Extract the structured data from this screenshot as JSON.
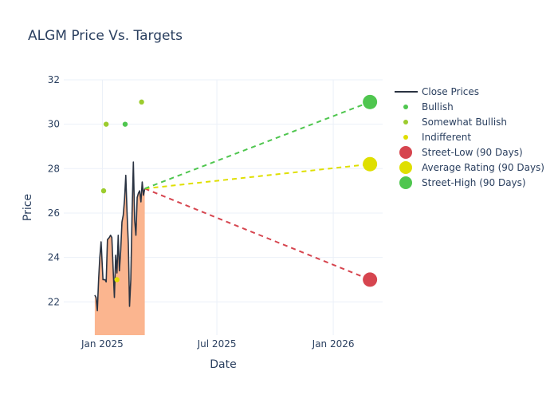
{
  "chart_data": {
    "type": "line",
    "title": "ALGM Price Vs. Targets",
    "xlabel": "Date",
    "ylabel": "Price",
    "ylim": [
      20.5,
      32
    ],
    "xlim": [
      "2024-11-01",
      "2026-03-20"
    ],
    "y_ticks": [
      22,
      24,
      26,
      28,
      30,
      32
    ],
    "x_ticks": [
      {
        "date": "2025-01-01",
        "label": "Jan 2025"
      },
      {
        "date": "2025-07-01",
        "label": "Jul 2025"
      },
      {
        "date": "2026-01-01",
        "label": "Jan 2026"
      }
    ],
    "grid": true,
    "legend_position": "right",
    "colors": {
      "close": "#2a3342",
      "fill": "#fbb58f",
      "bullish": "#4fc64f",
      "somewhat_bullish": "#9ccc2e",
      "indifferent": "#e0de00",
      "street_low": "#d6454f",
      "average": "#dfdf00",
      "street_high": "#4fc64f"
    },
    "close_prices": [
      {
        "x": "2024-12-20",
        "y": 22.3
      },
      {
        "x": "2024-12-22",
        "y": 22.2
      },
      {
        "x": "2024-12-24",
        "y": 21.6
      },
      {
        "x": "2024-12-26",
        "y": 23.0
      },
      {
        "x": "2024-12-28",
        "y": 24.0
      },
      {
        "x": "2024-12-30",
        "y": 24.7
      },
      {
        "x": "2025-01-02",
        "y": 23.0
      },
      {
        "x": "2025-01-05",
        "y": 23.0
      },
      {
        "x": "2025-01-07",
        "y": 22.9
      },
      {
        "x": "2025-01-09",
        "y": 24.8
      },
      {
        "x": "2025-01-12",
        "y": 24.9
      },
      {
        "x": "2025-01-14",
        "y": 25.0
      },
      {
        "x": "2025-01-16",
        "y": 24.9
      },
      {
        "x": "2025-01-18",
        "y": 23.5
      },
      {
        "x": "2025-01-20",
        "y": 22.2
      },
      {
        "x": "2025-01-22",
        "y": 24.1
      },
      {
        "x": "2025-01-24",
        "y": 23.3
      },
      {
        "x": "2025-01-26",
        "y": 25.0
      },
      {
        "x": "2025-01-28",
        "y": 23.4
      },
      {
        "x": "2025-01-30",
        "y": 24.3
      },
      {
        "x": "2025-02-01",
        "y": 25.6
      },
      {
        "x": "2025-02-03",
        "y": 25.9
      },
      {
        "x": "2025-02-05",
        "y": 26.6
      },
      {
        "x": "2025-02-07",
        "y": 27.7
      },
      {
        "x": "2025-02-09",
        "y": 26.0
      },
      {
        "x": "2025-02-11",
        "y": 24.6
      },
      {
        "x": "2025-02-13",
        "y": 21.8
      },
      {
        "x": "2025-02-15",
        "y": 23.0
      },
      {
        "x": "2025-02-17",
        "y": 26.0
      },
      {
        "x": "2025-02-19",
        "y": 28.3
      },
      {
        "x": "2025-02-21",
        "y": 25.7
      },
      {
        "x": "2025-02-23",
        "y": 25.0
      },
      {
        "x": "2025-02-25",
        "y": 26.7
      },
      {
        "x": "2025-02-27",
        "y": 26.9
      },
      {
        "x": "2025-03-01",
        "y": 27.0
      },
      {
        "x": "2025-03-03",
        "y": 26.5
      },
      {
        "x": "2025-03-05",
        "y": 27.4
      },
      {
        "x": "2025-03-07",
        "y": 26.8
      },
      {
        "x": "2025-03-09",
        "y": 27.1
      }
    ],
    "analyst_ratings": [
      {
        "x": "2025-01-03",
        "y": 27.0,
        "rating": "Somewhat Bullish"
      },
      {
        "x": "2025-01-07",
        "y": 30.0,
        "rating": "Somewhat Bullish"
      },
      {
        "x": "2025-01-24",
        "y": 23.0,
        "rating": "Indifferent"
      },
      {
        "x": "2025-02-06",
        "y": 30.0,
        "rating": "Bullish"
      },
      {
        "x": "2025-03-04",
        "y": 31.0,
        "rating": "Somewhat Bullish"
      }
    ],
    "targets": {
      "start": {
        "x": "2025-03-09",
        "y": 27.1
      },
      "target_date": "2026-02-28",
      "street_low": 23.0,
      "average": 28.2,
      "street_high": 31.0
    },
    "legend": [
      {
        "label": "Close Prices",
        "kind": "line",
        "color_key": "close"
      },
      {
        "label": "Bullish",
        "kind": "dot",
        "color_key": "bullish"
      },
      {
        "label": "Somewhat Bullish",
        "kind": "dot",
        "color_key": "somewhat_bullish"
      },
      {
        "label": "Indifferent",
        "kind": "dot",
        "color_key": "indifferent"
      },
      {
        "label": "Street-Low (90 Days)",
        "kind": "bigdot",
        "color_key": "street_low"
      },
      {
        "label": "Average Rating (90 Days)",
        "kind": "bigdot",
        "color_key": "average"
      },
      {
        "label": "Street-High (90 Days)",
        "kind": "bigdot",
        "color_key": "street_high"
      }
    ]
  }
}
